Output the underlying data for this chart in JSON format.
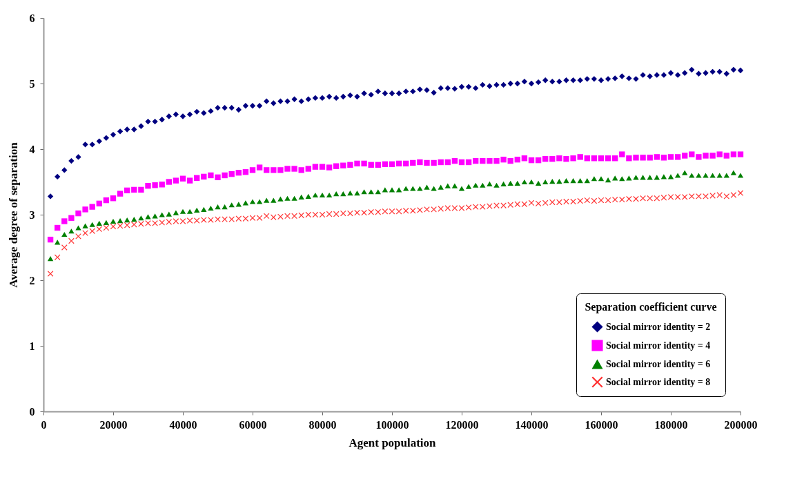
{
  "chart_data": {
    "type": "scatter",
    "xlabel": "Agent population",
    "ylabel": "Average degree of separation",
    "legend_title": "Separation coefficient curve",
    "x": [
      2000,
      4000,
      6000,
      8000,
      10000,
      12000,
      14000,
      16000,
      18000,
      20000,
      22000,
      24000,
      26000,
      28000,
      30000,
      32000,
      34000,
      36000,
      38000,
      40000,
      42000,
      44000,
      46000,
      48000,
      50000,
      52000,
      54000,
      56000,
      58000,
      60000,
      62000,
      64000,
      66000,
      68000,
      70000,
      72000,
      74000,
      76000,
      78000,
      80000,
      82000,
      84000,
      86000,
      88000,
      90000,
      92000,
      94000,
      96000,
      98000,
      100000,
      102000,
      104000,
      106000,
      108000,
      110000,
      112000,
      114000,
      116000,
      118000,
      120000,
      122000,
      124000,
      126000,
      128000,
      130000,
      132000,
      134000,
      136000,
      138000,
      140000,
      142000,
      144000,
      146000,
      148000,
      150000,
      152000,
      154000,
      156000,
      158000,
      160000,
      162000,
      164000,
      166000,
      168000,
      170000,
      172000,
      174000,
      176000,
      178000,
      180000,
      182000,
      184000,
      186000,
      188000,
      190000,
      192000,
      194000,
      196000,
      198000,
      200000
    ],
    "series": [
      {
        "name": "Social mirror identity = 2",
        "color": "#000080",
        "marker": "diamond",
        "values": [
          3.28,
          3.58,
          3.68,
          3.82,
          3.88,
          4.07,
          4.07,
          4.12,
          4.17,
          4.22,
          4.27,
          4.3,
          4.3,
          4.35,
          4.42,
          4.42,
          4.45,
          4.5,
          4.53,
          4.5,
          4.53,
          4.57,
          4.55,
          4.58,
          4.63,
          4.63,
          4.63,
          4.6,
          4.66,
          4.66,
          4.66,
          4.73,
          4.7,
          4.73,
          4.73,
          4.76,
          4.73,
          4.76,
          4.78,
          4.78,
          4.8,
          4.78,
          4.8,
          4.82,
          4.8,
          4.85,
          4.83,
          4.88,
          4.85,
          4.85,
          4.85,
          4.88,
          4.88,
          4.91,
          4.9,
          4.86,
          4.93,
          4.93,
          4.92,
          4.95,
          4.95,
          4.93,
          4.98,
          4.96,
          4.98,
          4.98,
          5.0,
          5.0,
          5.03,
          5.0,
          5.02,
          5.05,
          5.03,
          5.03,
          5.05,
          5.05,
          5.05,
          5.07,
          5.07,
          5.05,
          5.07,
          5.08,
          5.11,
          5.08,
          5.07,
          5.13,
          5.11,
          5.13,
          5.13,
          5.16,
          5.13,
          5.16,
          5.21,
          5.15,
          5.16,
          5.18,
          5.18,
          5.15,
          5.21,
          5.2
        ]
      },
      {
        "name": "Social mirror identity = 4",
        "color": "#ff00ff",
        "marker": "square",
        "values": [
          2.62,
          2.8,
          2.9,
          2.95,
          3.02,
          3.08,
          3.12,
          3.17,
          3.22,
          3.25,
          3.32,
          3.37,
          3.38,
          3.38,
          3.44,
          3.45,
          3.46,
          3.5,
          3.52,
          3.55,
          3.52,
          3.56,
          3.58,
          3.6,
          3.57,
          3.6,
          3.62,
          3.64,
          3.65,
          3.68,
          3.72,
          3.68,
          3.68,
          3.68,
          3.7,
          3.7,
          3.68,
          3.7,
          3.73,
          3.73,
          3.72,
          3.74,
          3.75,
          3.76,
          3.78,
          3.78,
          3.76,
          3.76,
          3.77,
          3.77,
          3.78,
          3.78,
          3.79,
          3.8,
          3.79,
          3.79,
          3.8,
          3.8,
          3.82,
          3.8,
          3.8,
          3.82,
          3.82,
          3.82,
          3.82,
          3.84,
          3.82,
          3.84,
          3.86,
          3.83,
          3.83,
          3.85,
          3.85,
          3.86,
          3.85,
          3.86,
          3.88,
          3.86,
          3.86,
          3.86,
          3.86,
          3.86,
          3.92,
          3.86,
          3.87,
          3.87,
          3.87,
          3.88,
          3.87,
          3.88,
          3.88,
          3.9,
          3.92,
          3.88,
          3.9,
          3.9,
          3.92,
          3.9,
          3.92,
          3.92
        ]
      },
      {
        "name": "Social mirror identity = 6",
        "color": "#008000",
        "marker": "triangle",
        "values": [
          2.33,
          2.58,
          2.7,
          2.75,
          2.8,
          2.83,
          2.85,
          2.87,
          2.88,
          2.9,
          2.91,
          2.92,
          2.93,
          2.95,
          2.97,
          2.98,
          3.0,
          3.01,
          3.03,
          3.05,
          3.05,
          3.07,
          3.08,
          3.1,
          3.12,
          3.12,
          3.15,
          3.16,
          3.18,
          3.2,
          3.2,
          3.22,
          3.22,
          3.24,
          3.25,
          3.25,
          3.27,
          3.28,
          3.3,
          3.3,
          3.3,
          3.32,
          3.32,
          3.33,
          3.33,
          3.35,
          3.35,
          3.35,
          3.38,
          3.38,
          3.38,
          3.4,
          3.4,
          3.4,
          3.42,
          3.4,
          3.42,
          3.44,
          3.44,
          3.4,
          3.43,
          3.45,
          3.45,
          3.47,
          3.45,
          3.47,
          3.48,
          3.48,
          3.5,
          3.5,
          3.48,
          3.5,
          3.51,
          3.51,
          3.52,
          3.52,
          3.52,
          3.52,
          3.55,
          3.55,
          3.53,
          3.56,
          3.55,
          3.56,
          3.57,
          3.57,
          3.57,
          3.57,
          3.58,
          3.58,
          3.6,
          3.64,
          3.6,
          3.6,
          3.6,
          3.6,
          3.6,
          3.6,
          3.64,
          3.6
        ]
      },
      {
        "name": "Social mirror identity = 8",
        "color": "#ff3333",
        "marker": "cross",
        "values": [
          2.1,
          2.35,
          2.5,
          2.6,
          2.67,
          2.72,
          2.75,
          2.78,
          2.8,
          2.82,
          2.83,
          2.84,
          2.85,
          2.86,
          2.87,
          2.87,
          2.88,
          2.89,
          2.9,
          2.9,
          2.91,
          2.91,
          2.92,
          2.92,
          2.93,
          2.93,
          2.93,
          2.94,
          2.94,
          2.95,
          2.95,
          2.98,
          2.96,
          2.97,
          2.98,
          2.98,
          2.99,
          3.0,
          3.0,
          3.0,
          3.01,
          3.01,
          3.02,
          3.02,
          3.03,
          3.03,
          3.04,
          3.04,
          3.05,
          3.05,
          3.05,
          3.06,
          3.06,
          3.07,
          3.08,
          3.08,
          3.09,
          3.1,
          3.1,
          3.1,
          3.11,
          3.12,
          3.12,
          3.13,
          3.14,
          3.14,
          3.15,
          3.16,
          3.16,
          3.18,
          3.17,
          3.18,
          3.19,
          3.19,
          3.2,
          3.2,
          3.21,
          3.22,
          3.21,
          3.22,
          3.22,
          3.23,
          3.23,
          3.24,
          3.24,
          3.25,
          3.25,
          3.25,
          3.26,
          3.27,
          3.27,
          3.27,
          3.28,
          3.28,
          3.28,
          3.29,
          3.3,
          3.28,
          3.3,
          3.33
        ]
      }
    ],
    "xlim": [
      0,
      200000
    ],
    "xticks": [
      0,
      20000,
      40000,
      60000,
      80000,
      100000,
      120000,
      140000,
      160000,
      180000,
      200000
    ],
    "ylim": [
      0,
      6
    ],
    "yticks": [
      0,
      1,
      2,
      3,
      4,
      5,
      6
    ],
    "legend": "bottom right"
  }
}
